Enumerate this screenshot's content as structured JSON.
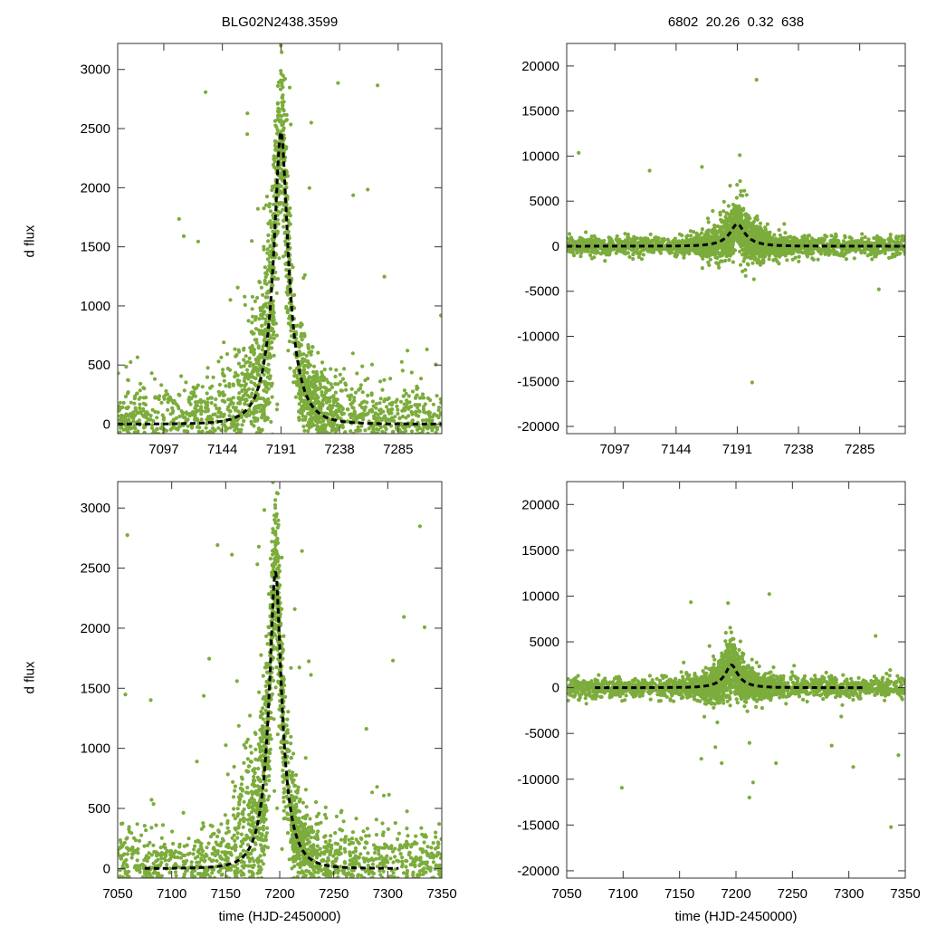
{
  "chart_data": [
    {
      "type": "scatter",
      "id": "top-left",
      "title": "BLG02N2438.3599",
      "ylabel": "d flux",
      "xlabel": "",
      "xlim": [
        7060,
        7320
      ],
      "ylim": [
        -80,
        3220
      ],
      "xticks": [
        7097,
        7144,
        7191,
        7238,
        7285
      ],
      "yticks": [
        0,
        500,
        1000,
        1500,
        2000,
        2500,
        3000
      ],
      "model": {
        "t0": 7191,
        "peak": 2470,
        "tE": 18,
        "u0": 0.3,
        "baseline": 0
      },
      "point_color": "#7cac3c"
    },
    {
      "type": "scatter",
      "id": "top-right",
      "title": "6802  20.26  0.32  638",
      "ylabel": "",
      "xlabel": "",
      "xlim": [
        7060,
        7320
      ],
      "ylim": [
        -20800,
        22500
      ],
      "xticks": [
        7097,
        7144,
        7191,
        7238,
        7285
      ],
      "yticks": [
        -20000,
        -15000,
        -10000,
        -5000,
        0,
        5000,
        10000,
        15000,
        20000
      ],
      "model": {
        "t0": 7191,
        "peak": 2470,
        "tE": 18,
        "u0": 0.3,
        "baseline": 0
      },
      "point_color": "#7cac3c"
    },
    {
      "type": "scatter",
      "id": "bottom-left",
      "title": "",
      "ylabel": "d flux",
      "xlabel": "time (HJD-2450000)",
      "xlim": [
        7050,
        7350
      ],
      "ylim": [
        -80,
        3220
      ],
      "xticks": [
        7050,
        7100,
        7150,
        7200,
        7250,
        7300,
        7350
      ],
      "yticks": [
        0,
        500,
        1000,
        1500,
        2000,
        2500,
        3000
      ],
      "model": {
        "t0": 7196,
        "peak": 2470,
        "tE": 18,
        "u0": 0.3,
        "baseline": 0,
        "x_start": 7075,
        "x_end": 7310
      },
      "point_color": "#7cac3c"
    },
    {
      "type": "scatter",
      "id": "bottom-right",
      "title": "",
      "ylabel": "",
      "xlabel": "time (HJD-2450000)",
      "xlim": [
        7050,
        7350
      ],
      "ylim": [
        -20800,
        22500
      ],
      "xticks": [
        7050,
        7100,
        7150,
        7200,
        7250,
        7300,
        7350
      ],
      "yticks": [
        -20000,
        -15000,
        -10000,
        -5000,
        0,
        5000,
        10000,
        15000,
        20000
      ],
      "model": {
        "t0": 7196,
        "peak": 2470,
        "tE": 18,
        "u0": 0.3,
        "baseline": 0,
        "x_start": 7075,
        "x_end": 7313
      },
      "point_color": "#7cac3c"
    }
  ]
}
